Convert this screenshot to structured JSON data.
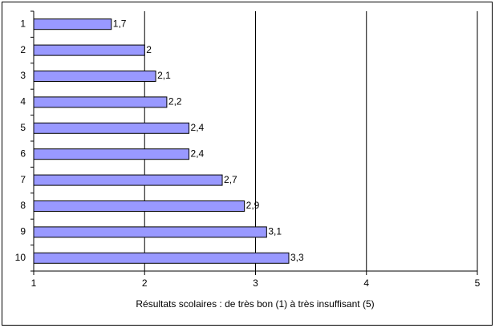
{
  "chart_data": {
    "type": "bar",
    "orientation": "horizontal",
    "x_label": "Résultats scolaires : de très bon (1) à très insuffisant (5)",
    "categories": [
      "1",
      "2",
      "3",
      "4",
      "5",
      "6",
      "7",
      "8",
      "9",
      "10"
    ],
    "values": [
      1.7,
      2,
      2.1,
      2.2,
      2.4,
      2.4,
      2.7,
      2.9,
      3.1,
      3.3
    ],
    "value_labels": [
      "1,7",
      "2",
      "2,1",
      "2,2",
      "2,4",
      "2,4",
      "2,7",
      "2,9",
      "3,1",
      "3,3"
    ],
    "color": "#9999ff",
    "xlim": [
      1,
      5
    ],
    "xticks": [
      1,
      2,
      3,
      4,
      5
    ],
    "grid": true
  }
}
